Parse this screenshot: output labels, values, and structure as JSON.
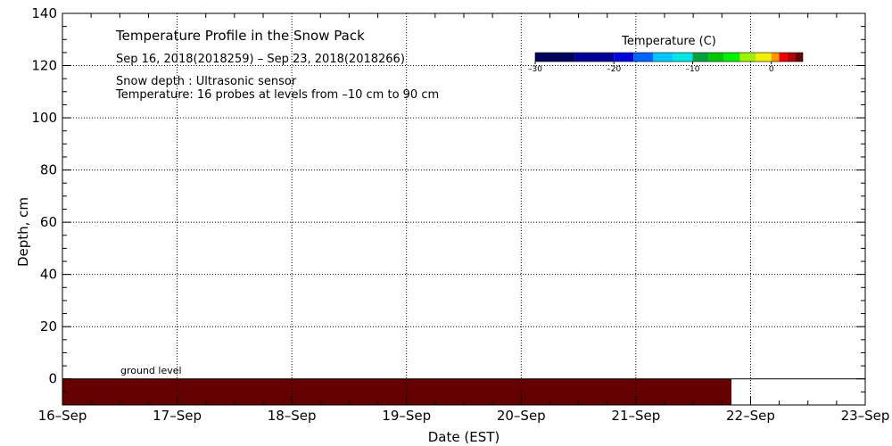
{
  "chart_data": {
    "type": "heatmap",
    "title": "Temperature Profile in the Snow Pack",
    "subtitle": "Sep 16, 2018(2018259) – Sep 23, 2018(2018266)",
    "notes": [
      "Snow depth : Ultrasonic sensor",
      "Temperature: 16 probes at levels from –10 cm to 90 cm"
    ],
    "xlabel": "Date (EST)",
    "ylabel": "Depth, cm",
    "x_ticks": [
      "16–Sep",
      "17–Sep",
      "18–Sep",
      "19–Sep",
      "20–Sep",
      "21–Sep",
      "22–Sep",
      "23–Sep"
    ],
    "x_range": [
      "2018-09-16",
      "2018-09-23"
    ],
    "y_ticks": [
      0,
      20,
      40,
      60,
      80,
      100,
      120,
      140
    ],
    "ylim": [
      -10,
      140
    ],
    "grid": true,
    "ground_level_label": "ground level",
    "regions": [
      {
        "x_start": "2018-09-16",
        "x_end": "2018-09-21T20:00",
        "y_from": -10,
        "y_to": 0,
        "color": "#640000",
        "temperature_c": 3
      }
    ],
    "legend": {
      "title": "Temperature (C)",
      "placement": "top-right",
      "tick_values": [
        -30,
        -20,
        -10,
        0
      ],
      "tick_labels": [
        "–30",
        "–20",
        "–10",
        "0"
      ],
      "range": [
        -30,
        4
      ],
      "bins": [
        {
          "from": -30,
          "to": -25,
          "color": "#00005a"
        },
        {
          "from": -25,
          "to": -20,
          "color": "#000096"
        },
        {
          "from": -20,
          "to": -17.5,
          "color": "#0000dc"
        },
        {
          "from": -17.5,
          "to": -15,
          "color": "#0064ff"
        },
        {
          "from": -15,
          "to": -12.5,
          "color": "#00c8ff"
        },
        {
          "from": -12.5,
          "to": -10,
          "color": "#00e6e6"
        },
        {
          "from": -10,
          "to": -8,
          "color": "#00a03c"
        },
        {
          "from": -8,
          "to": -6,
          "color": "#00c800"
        },
        {
          "from": -6,
          "to": -4,
          "color": "#00f000"
        },
        {
          "from": -4,
          "to": -2,
          "color": "#a0f000"
        },
        {
          "from": -2,
          "to": 0,
          "color": "#f0f000"
        },
        {
          "from": 0,
          "to": 1,
          "color": "#ff9600"
        },
        {
          "from": 1,
          "to": 2,
          "color": "#f00000"
        },
        {
          "from": 2,
          "to": 3,
          "color": "#b40000"
        },
        {
          "from": 3,
          "to": 4,
          "color": "#640000"
        }
      ]
    }
  }
}
